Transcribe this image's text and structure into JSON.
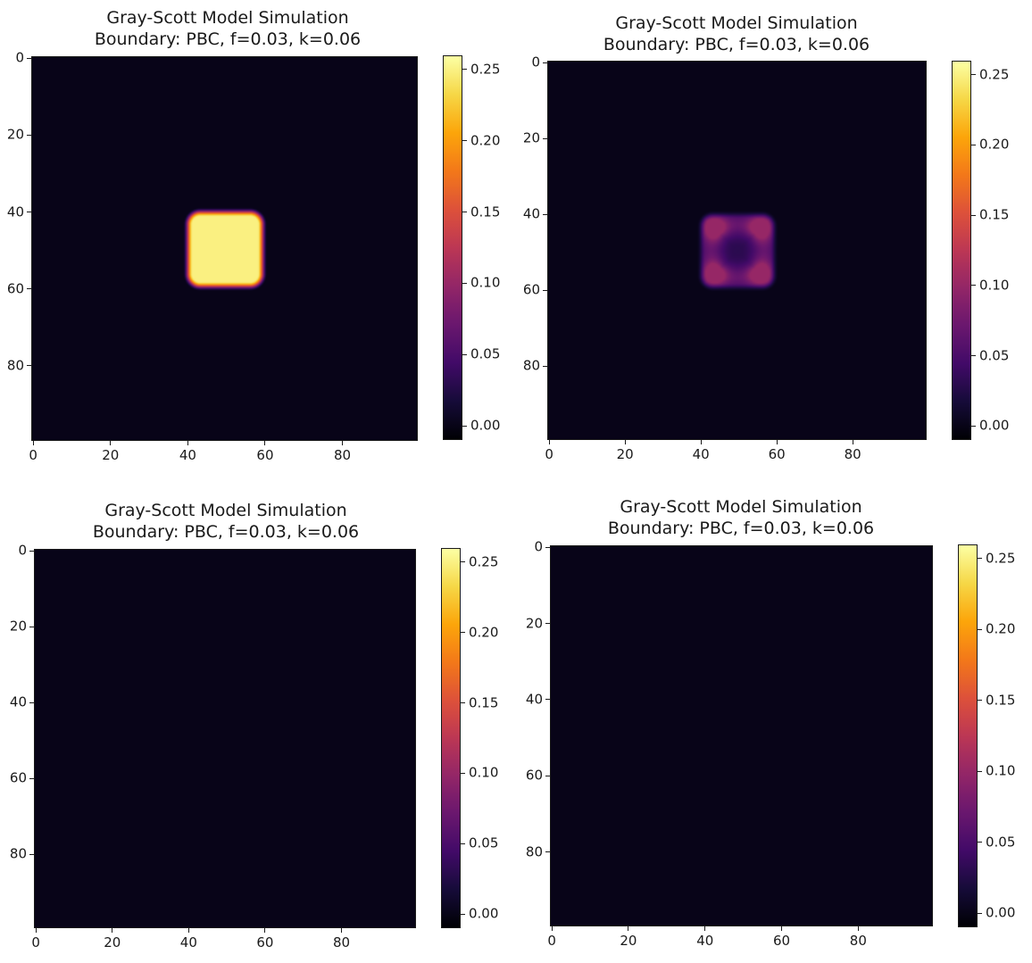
{
  "colormap": "inferno",
  "chart_data": [
    {
      "type": "heatmap",
      "title": "Gray-Scott Model Simulation",
      "subtitle": "Boundary: PBC, f=0.03, k=0.06",
      "grid_size": [
        100,
        100
      ],
      "xlim": [
        0,
        99
      ],
      "ylim": [
        0,
        99
      ],
      "x_ticks": [
        "0",
        "20",
        "40",
        "60",
        "80"
      ],
      "y_ticks": [
        "0",
        "20",
        "40",
        "60",
        "80"
      ],
      "colorbar": {
        "range": [
          -0.01,
          0.26
        ],
        "ticks": [
          "0.00",
          "0.05",
          "0.10",
          "0.15",
          "0.20",
          "0.25"
        ]
      },
      "field": {
        "pattern": "filled-square",
        "x_range": [
          40,
          59
        ],
        "y_range": [
          40,
          59
        ],
        "peak": 0.25,
        "background": 0.0
      }
    },
    {
      "type": "heatmap",
      "title": "Gray-Scott Model Simulation",
      "subtitle": "Boundary: PBC, f=0.03, k=0.06",
      "grid_size": [
        100,
        100
      ],
      "xlim": [
        0,
        99
      ],
      "ylim": [
        0,
        99
      ],
      "x_ticks": [
        "0",
        "20",
        "40",
        "60",
        "80"
      ],
      "y_ticks": [
        "0",
        "20",
        "40",
        "60",
        "80"
      ],
      "colorbar": {
        "range": [
          -0.01,
          0.26
        ],
        "ticks": [
          "0.00",
          "0.05",
          "0.10",
          "0.15",
          "0.20",
          "0.25"
        ]
      },
      "field": {
        "pattern": "hollow-square",
        "x_range": [
          40,
          59
        ],
        "y_range": [
          40,
          59
        ],
        "peak": 0.1,
        "background": 0.0
      }
    },
    {
      "type": "heatmap",
      "title": "Gray-Scott Model Simulation",
      "subtitle": "Boundary: PBC, f=0.03, k=0.06",
      "grid_size": [
        100,
        100
      ],
      "xlim": [
        0,
        99
      ],
      "ylim": [
        0,
        99
      ],
      "x_ticks": [
        "0",
        "20",
        "40",
        "60",
        "80"
      ],
      "y_ticks": [
        "0",
        "20",
        "40",
        "60",
        "80"
      ],
      "colorbar": {
        "range": [
          -0.01,
          0.26
        ],
        "ticks": [
          "0.00",
          "0.05",
          "0.10",
          "0.15",
          "0.20",
          "0.25"
        ]
      },
      "field": {
        "pattern": "uniform",
        "background": 0.0
      }
    },
    {
      "type": "heatmap",
      "title": "Gray-Scott Model Simulation",
      "subtitle": "Boundary: PBC, f=0.03, k=0.06",
      "grid_size": [
        100,
        100
      ],
      "xlim": [
        0,
        99
      ],
      "ylim": [
        0,
        99
      ],
      "x_ticks": [
        "0",
        "20",
        "40",
        "60",
        "80"
      ],
      "y_ticks": [
        "0",
        "20",
        "40",
        "60",
        "80"
      ],
      "colorbar": {
        "range": [
          -0.01,
          0.26
        ],
        "ticks": [
          "0.00",
          "0.05",
          "0.10",
          "0.15",
          "0.20",
          "0.25"
        ]
      },
      "field": {
        "pattern": "uniform",
        "background": 0.0
      }
    }
  ]
}
